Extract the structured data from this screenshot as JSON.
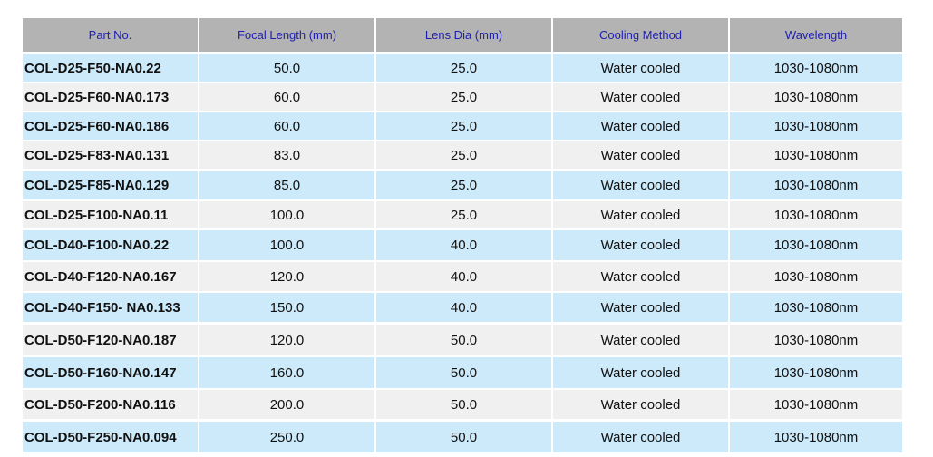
{
  "table": {
    "header": [
      "Part No.",
      "Focal Length (mm)",
      "Lens Dia (mm)",
      "Cooling Method",
      "Wavelength"
    ],
    "rows": [
      [
        "COL-D25-F50-NA0.22",
        "50.0",
        "25.0",
        "Water cooled",
        "1030-1080nm"
      ],
      [
        "COL-D25-F60-NA0.173",
        "60.0",
        "25.0",
        "Water cooled",
        "1030-1080nm"
      ],
      [
        "COL-D25-F60-NA0.186",
        "60.0",
        "25.0",
        "Water cooled",
        "1030-1080nm"
      ],
      [
        "COL-D25-F83-NA0.131",
        "83.0",
        "25.0",
        "Water cooled",
        "1030-1080nm"
      ],
      [
        "COL-D25-F85-NA0.129",
        "85.0",
        "25.0",
        "Water cooled",
        "1030-1080nm"
      ],
      [
        "COL-D25-F100-NA0.11",
        "100.0",
        "25.0",
        "Water cooled",
        "1030-1080nm"
      ],
      [
        "COL-D40-F100-NA0.22",
        "100.0",
        "40.0",
        "Water cooled",
        "1030-1080nm"
      ],
      [
        "COL-D40-F120-NA0.167",
        "120.0",
        "40.0",
        "Water cooled",
        "1030-1080nm"
      ],
      [
        "COL-D40-F150- NA0.133",
        "150.0",
        "40.0",
        "Water cooled",
        "1030-1080nm"
      ],
      [
        "COL-D50-F120-NA0.187",
        "120.0",
        "50.0",
        "Water cooled",
        "1030-1080nm"
      ],
      [
        "COL-D50-F160-NA0.147",
        "160.0",
        "50.0",
        "Water cooled",
        "1030-1080nm"
      ],
      [
        "COL-D50-F200-NA0.116",
        "200.0",
        "50.0",
        "Water cooled",
        "1030-1080nm"
      ],
      [
        "COL-D50-F250-NA0.094",
        "250.0",
        "50.0",
        "Water cooled",
        "1030-1080nm"
      ]
    ]
  }
}
